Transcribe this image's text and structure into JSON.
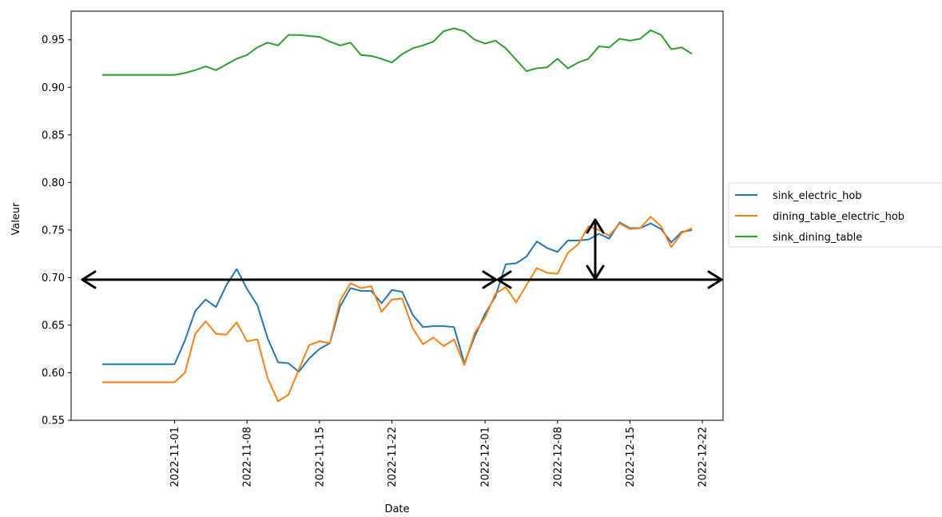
{
  "chart_data": {
    "type": "line",
    "title": "",
    "xlabel": "Date",
    "ylabel": "Valeur",
    "x_range": [
      "2022-10-22",
      "2022-12-24"
    ],
    "ylim": [
      0.55,
      0.98
    ],
    "yticks": [
      0.55,
      0.6,
      0.65,
      0.7,
      0.75,
      0.8,
      0.85,
      0.9,
      0.95
    ],
    "xticks": [
      "2022-11-01",
      "2022-11-08",
      "2022-11-15",
      "2022-11-22",
      "2022-12-01",
      "2022-12-08",
      "2022-12-15",
      "2022-12-22"
    ],
    "grid": false,
    "legend_position": "outside-right",
    "colors": {
      "sink_electric_hob": "#1f77b4",
      "dining_table_electric_hob": "#ff7f0e",
      "sink_dining_table": "#2ca02c"
    },
    "x": [
      "2022-10-25",
      "2022-10-26",
      "2022-10-27",
      "2022-10-28",
      "2022-10-29",
      "2022-10-30",
      "2022-10-31",
      "2022-11-01",
      "2022-11-02",
      "2022-11-03",
      "2022-11-04",
      "2022-11-05",
      "2022-11-06",
      "2022-11-07",
      "2022-11-08",
      "2022-11-09",
      "2022-11-10",
      "2022-11-11",
      "2022-11-12",
      "2022-11-13",
      "2022-11-14",
      "2022-11-15",
      "2022-11-16",
      "2022-11-17",
      "2022-11-18",
      "2022-11-19",
      "2022-11-20",
      "2022-11-21",
      "2022-11-22",
      "2022-11-23",
      "2022-11-24",
      "2022-11-25",
      "2022-11-26",
      "2022-11-27",
      "2022-11-28",
      "2022-11-29",
      "2022-11-30",
      "2022-12-01",
      "2022-12-02",
      "2022-12-03",
      "2022-12-04",
      "2022-12-05",
      "2022-12-06",
      "2022-12-07",
      "2022-12-08",
      "2022-12-09",
      "2022-12-10",
      "2022-12-11",
      "2022-12-12",
      "2022-12-13",
      "2022-12-14",
      "2022-12-15",
      "2022-12-16",
      "2022-12-17",
      "2022-12-18",
      "2022-12-19",
      "2022-12-20",
      "2022-12-21"
    ],
    "series": [
      {
        "name": "sink_electric_hob",
        "values": [
          0.609,
          0.609,
          0.609,
          0.609,
          0.609,
          0.609,
          0.609,
          0.609,
          0.634,
          0.665,
          0.677,
          0.669,
          0.692,
          0.709,
          0.688,
          0.671,
          0.636,
          0.611,
          0.61,
          0.601,
          0.615,
          0.625,
          0.631,
          0.67,
          0.689,
          0.686,
          0.686,
          0.673,
          0.687,
          0.685,
          0.661,
          0.648,
          0.649,
          0.649,
          0.648,
          0.61,
          0.638,
          0.662,
          0.68,
          0.714,
          0.715,
          0.722,
          0.738,
          0.731,
          0.727,
          0.739,
          0.739,
          0.74,
          0.746,
          0.741,
          0.758,
          0.752,
          0.752,
          0.757,
          0.751,
          0.737,
          0.748,
          0.75
        ]
      },
      {
        "name": "dining_table_electric_hob",
        "values": [
          0.59,
          0.59,
          0.59,
          0.59,
          0.59,
          0.59,
          0.59,
          0.59,
          0.6,
          0.641,
          0.654,
          0.641,
          0.64,
          0.653,
          0.633,
          0.635,
          0.594,
          0.57,
          0.577,
          0.603,
          0.629,
          0.633,
          0.631,
          0.676,
          0.694,
          0.689,
          0.691,
          0.664,
          0.677,
          0.678,
          0.647,
          0.63,
          0.637,
          0.628,
          0.635,
          0.608,
          0.642,
          0.658,
          0.683,
          0.69,
          0.674,
          0.692,
          0.71,
          0.705,
          0.704,
          0.726,
          0.735,
          0.754,
          0.75,
          0.744,
          0.757,
          0.751,
          0.752,
          0.764,
          0.754,
          0.732,
          0.747,
          0.752
        ]
      },
      {
        "name": "sink_dining_table",
        "values": [
          0.913,
          0.913,
          0.913,
          0.913,
          0.913,
          0.913,
          0.913,
          0.913,
          0.915,
          0.918,
          0.922,
          0.918,
          0.924,
          0.93,
          0.934,
          0.942,
          0.947,
          0.944,
          0.955,
          0.955,
          0.954,
          0.953,
          0.948,
          0.944,
          0.947,
          0.934,
          0.933,
          0.93,
          0.926,
          0.935,
          0.941,
          0.944,
          0.948,
          0.959,
          0.962,
          0.959,
          0.95,
          0.946,
          0.949,
          0.941,
          0.929,
          0.917,
          0.92,
          0.921,
          0.93,
          0.92,
          0.926,
          0.93,
          0.943,
          0.942,
          0.951,
          0.949,
          0.951,
          0.96,
          0.955,
          0.94,
          0.942,
          0.935
        ]
      }
    ]
  }
}
